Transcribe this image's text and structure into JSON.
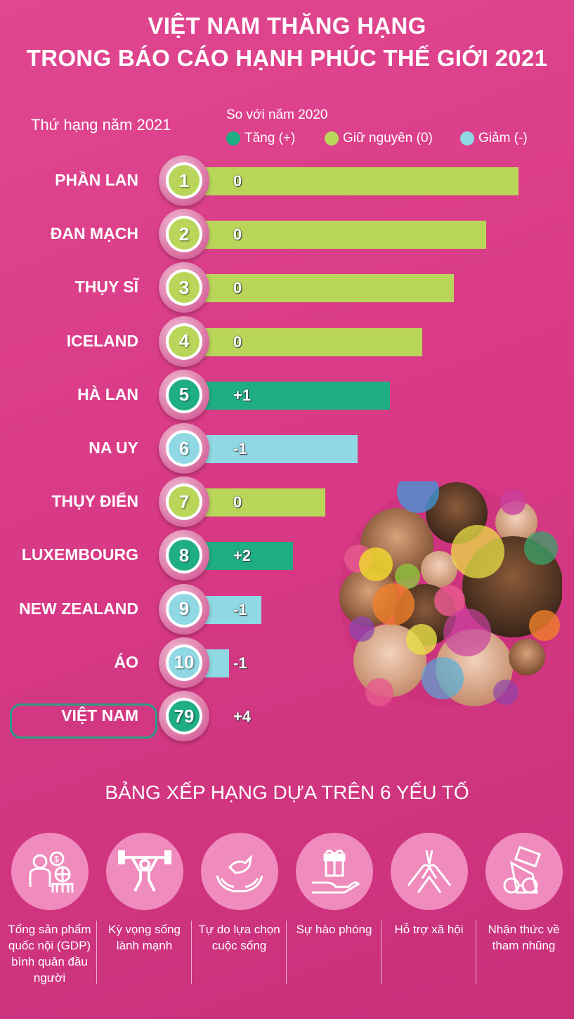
{
  "title": {
    "line1": "VIỆT NAM THĂNG HẠNG",
    "line2": "TRONG BÁO CÁO HẠNH PHÚC THẾ GIỚI 2021"
  },
  "rank_header": "Thứ hạng năm 2021",
  "compare_header": "So với năm 2020",
  "legend": {
    "increase": "Tăng (+)",
    "same": "Giữ nguyên (0)",
    "decrease": "Giảm (-)"
  },
  "colors": {
    "increase": "#1fae84",
    "same": "#b9d65a",
    "decrease": "#8fd8e4",
    "background": "#d93a86"
  },
  "chart_data": {
    "type": "bar",
    "categories": [
      "PHẦN LAN",
      "ĐAN MẠCH",
      "THỤY SĨ",
      "ICELAND",
      "HÀ LAN",
      "NA UY",
      "THỤY ĐIỂN",
      "LUXEMBOURG",
      "NEW ZEALAND",
      "ÁO",
      "VIỆT NAM"
    ],
    "ranks": [
      "1",
      "2",
      "3",
      "4",
      "5",
      "6",
      "7",
      "8",
      "9",
      "10",
      "79"
    ],
    "changes": [
      "0",
      "0",
      "0",
      "0",
      "+1",
      "-1",
      "0",
      "+2",
      "-1",
      "-1",
      "+4"
    ],
    "status": [
      "same",
      "same",
      "same",
      "same",
      "increase",
      "decrease",
      "same",
      "increase",
      "decrease",
      "decrease",
      "increase"
    ]
  },
  "factors_title": "BẢNG XẾP HẠNG DỰA TRÊN 6 YẾU TỐ",
  "factors": [
    {
      "label": "Tổng sản phẩm quốc nội (GDP) bình quân đầu người",
      "icon": "gdp-people-icon"
    },
    {
      "label": "Kỳ vọng sống lành mạnh",
      "icon": "weightlifter-icon"
    },
    {
      "label": "Tự do lựa chọn cuộc sống",
      "icon": "dove-hands-icon"
    },
    {
      "label": "Sự hào phóng",
      "icon": "gift-hand-icon"
    },
    {
      "label": "Hỗ trợ xã hội",
      "icon": "joined-hands-icon"
    },
    {
      "label": "Nhận thức về tham nhũng",
      "icon": "handcuffs-money-icon"
    }
  ]
}
